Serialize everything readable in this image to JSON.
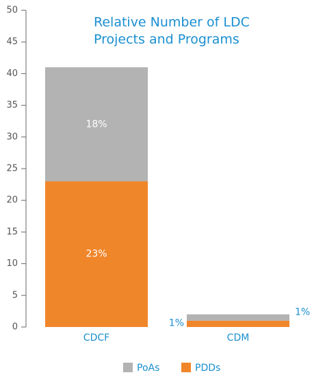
{
  "chart_data": {
    "type": "stacked_bar",
    "title": [
      "Relative Number of LDC",
      "Projects and Programs"
    ],
    "categories": [
      "CDCF",
      "CDM"
    ],
    "series": [
      {
        "name": "PoAs",
        "color": "#b3b3b3",
        "values": [
          18,
          1
        ],
        "value_labels": [
          "18%",
          "1%"
        ]
      },
      {
        "name": "PDDs",
        "color": "#f0862a",
        "values": [
          23,
          1
        ],
        "value_labels": [
          "23%",
          "1%"
        ]
      }
    ],
    "ylim": [
      0,
      50
    ],
    "yticks": [
      0,
      5,
      10,
      15,
      20,
      25,
      30,
      35,
      40,
      45,
      50
    ]
  }
}
